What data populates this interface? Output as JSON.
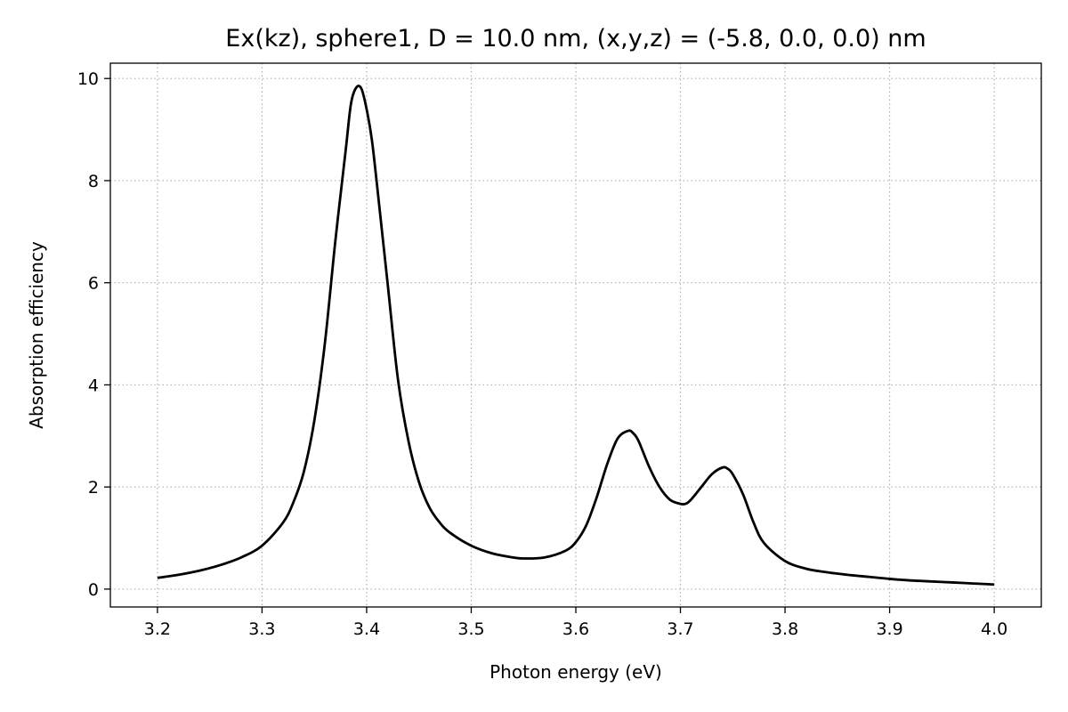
{
  "chart_data": {
    "type": "line",
    "title": "Ex(kz), sphere1, D = 10.0 nm, (x,y,z) = (-5.8, 0.0, 0.0) nm",
    "xlabel": "Photon energy (eV)",
    "ylabel": "Absorption efficiency",
    "xlim": [
      3.155,
      4.045
    ],
    "ylim": [
      -0.35,
      10.3
    ],
    "xticks": [
      3.2,
      3.3,
      3.4,
      3.5,
      3.6,
      3.7,
      3.8,
      3.9,
      4.0
    ],
    "xtick_labels": [
      "3.2",
      "3.3",
      "3.4",
      "3.5",
      "3.6",
      "3.7",
      "3.8",
      "3.9",
      "4.0"
    ],
    "yticks": [
      0,
      2,
      4,
      6,
      8,
      10
    ],
    "ytick_labels": [
      "0",
      "2",
      "4",
      "6",
      "8",
      "10"
    ],
    "grid": true,
    "grid_style": "dotted",
    "legend": "none",
    "colors": {
      "line": "#000000",
      "grid": "#b0b0b0",
      "axes": "#000000"
    },
    "series": [
      {
        "x": [
          3.2,
          3.22,
          3.24,
          3.26,
          3.28,
          3.3,
          3.32,
          3.33,
          3.34,
          3.35,
          3.36,
          3.37,
          3.38,
          3.385,
          3.39,
          3.395,
          3.4,
          3.405,
          3.41,
          3.42,
          3.43,
          3.44,
          3.45,
          3.46,
          3.47,
          3.48,
          3.5,
          3.52,
          3.54,
          3.55,
          3.57,
          3.59,
          3.6,
          3.61,
          3.62,
          3.63,
          3.64,
          3.65,
          3.655,
          3.66,
          3.67,
          3.68,
          3.69,
          3.7,
          3.705,
          3.71,
          3.72,
          3.73,
          3.74,
          3.745,
          3.75,
          3.76,
          3.77,
          3.78,
          3.8,
          3.82,
          3.84,
          3.86,
          3.88,
          3.9,
          3.92,
          3.94,
          3.96,
          3.98,
          4.0
        ],
        "y": [
          0.22,
          0.28,
          0.36,
          0.47,
          0.62,
          0.85,
          1.3,
          1.7,
          2.3,
          3.3,
          4.8,
          6.8,
          8.6,
          9.5,
          9.82,
          9.8,
          9.4,
          8.8,
          7.9,
          6.0,
          4.1,
          2.9,
          2.1,
          1.6,
          1.3,
          1.1,
          0.85,
          0.7,
          0.62,
          0.6,
          0.62,
          0.75,
          0.92,
          1.25,
          1.8,
          2.45,
          2.95,
          3.1,
          3.05,
          2.9,
          2.4,
          2.0,
          1.75,
          1.67,
          1.67,
          1.75,
          2.0,
          2.25,
          2.38,
          2.36,
          2.25,
          1.85,
          1.3,
          0.9,
          0.55,
          0.4,
          0.33,
          0.28,
          0.24,
          0.2,
          0.17,
          0.15,
          0.13,
          0.11,
          0.09
        ]
      }
    ]
  }
}
